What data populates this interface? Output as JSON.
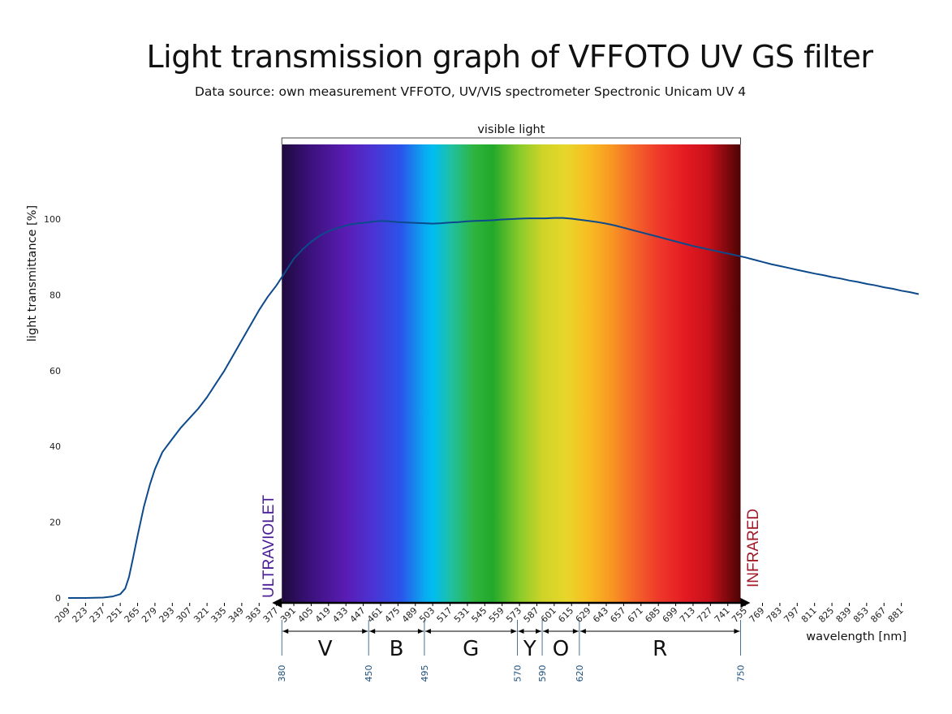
{
  "title": "Light transmission graph of VFFOTO UV GS filter",
  "subtitle": "Data source: own measurement VFFOTO, UV/VIS spectrometer Spectronic Unicam UV 4",
  "colors": {
    "line": "#0d4a8c",
    "uv_text": "#4a1d96",
    "ir_text": "#a01a2a",
    "boundary": "#1d4f7c"
  },
  "chart_data": {
    "type": "line",
    "title": "Light transmission graph of VFFOTO UV GS filter",
    "xlabel": "wavelength [nm]",
    "ylabel": "light transmittance [%]",
    "xlim": [
      209,
      895
    ],
    "ylim": [
      0,
      100
    ],
    "yticks": [
      0,
      20,
      40,
      60,
      80,
      100
    ],
    "xticks": [
      209,
      223,
      237,
      251,
      265,
      279,
      293,
      307,
      321,
      335,
      349,
      363,
      377,
      391,
      405,
      419,
      433,
      447,
      461,
      475,
      489,
      503,
      517,
      531,
      545,
      559,
      573,
      587,
      601,
      615,
      629,
      643,
      657,
      671,
      685,
      699,
      713,
      727,
      741,
      755,
      769,
      783,
      797,
      811,
      825,
      839,
      853,
      867,
      881
    ],
    "visible_label": "visible light",
    "uv_label": "ULTRAVIOLET",
    "ir_label": "INFRARED",
    "visible_range": [
      380,
      750
    ],
    "bands": [
      {
        "label": "V",
        "from": 380,
        "to": 450
      },
      {
        "label": "B",
        "from": 450,
        "to": 495
      },
      {
        "label": "G",
        "from": 495,
        "to": 570
      },
      {
        "label": "Y",
        "from": 570,
        "to": 590
      },
      {
        "label": "O",
        "from": 590,
        "to": 620
      },
      {
        "label": "R",
        "from": 620,
        "to": 750
      }
    ],
    "band_boundaries": [
      380,
      450,
      495,
      570,
      590,
      620,
      750
    ],
    "series": [
      {
        "x": [
          209,
          223,
          237,
          245,
          251,
          255,
          258,
          261,
          265,
          270,
          275,
          279,
          285,
          293,
          300,
          307,
          314,
          321,
          328,
          335,
          342,
          349,
          356,
          363,
          370,
          377,
          384,
          391,
          398,
          405,
          412,
          419,
          426,
          433,
          440,
          447,
          454,
          461,
          468,
          475,
          482,
          489,
          496,
          503,
          510,
          517,
          524,
          531,
          538,
          545,
          552,
          559,
          566,
          573,
          580,
          587,
          594,
          601,
          608,
          615,
          622,
          629,
          636,
          643,
          650,
          657,
          664,
          671,
          678,
          685,
          692,
          699,
          706,
          713,
          720,
          727,
          734,
          741,
          748,
          755,
          762,
          769,
          776,
          783,
          790,
          797,
          804,
          811,
          818,
          825,
          832,
          839,
          846,
          853,
          860,
          867,
          874,
          881,
          888,
          895
        ],
        "values": [
          0,
          0,
          0.1,
          0.4,
          1.0,
          2.5,
          5.5,
          10,
          16.5,
          24,
          30,
          34,
          38.5,
          42,
          45,
          47.5,
          50,
          53,
          56.5,
          60,
          64,
          68,
          72,
          76,
          79.5,
          82.5,
          86,
          89.5,
          92,
          94,
          95.6,
          96.8,
          97.6,
          98.3,
          98.8,
          99.0,
          99.3,
          99.5,
          99.4,
          99.2,
          99.1,
          99.0,
          98.9,
          98.8,
          98.9,
          99.1,
          99.2,
          99.4,
          99.5,
          99.6,
          99.7,
          99.9,
          100,
          100.1,
          100.2,
          100.2,
          100.2,
          100.3,
          100.3,
          100.1,
          99.8,
          99.5,
          99.2,
          98.8,
          98.3,
          97.7,
          97.1,
          96.5,
          95.9,
          95.3,
          94.7,
          94.1,
          93.5,
          92.9,
          92.4,
          91.9,
          91.4,
          90.9,
          90.4,
          89.9,
          89.3,
          88.7,
          88.1,
          87.6,
          87.1,
          86.6,
          86.1,
          85.6,
          85.2,
          84.7,
          84.3,
          83.8,
          83.4,
          82.9,
          82.5,
          82.0,
          81.6,
          81.1,
          80.7,
          80.2
        ]
      }
    ]
  }
}
